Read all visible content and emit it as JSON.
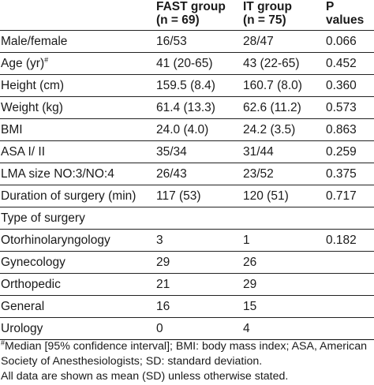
{
  "table": {
    "headers": [
      {
        "line1": "",
        "line2": ""
      },
      {
        "line1": "FAST group",
        "line2": "(n = 69)"
      },
      {
        "line1": "IT group",
        "line2": "(n = 75)"
      },
      {
        "line1": "P values",
        "line2": ""
      }
    ],
    "rows": [
      {
        "label": "Male/female",
        "sup": "",
        "fast": "16/53",
        "it": "28/47",
        "p": "0.066"
      },
      {
        "label": "Age (yr)",
        "sup": "#",
        "fast": "41 (20-65)",
        "it": "43 (22-65)",
        "p": "0.452"
      },
      {
        "label": "Height (cm)",
        "sup": "",
        "fast": "159.5 (8.4)",
        "it": "160.7 (8.0)",
        "p": "0.360"
      },
      {
        "label": "Weight (kg)",
        "sup": "",
        "fast": "61.4 (13.3)",
        "it": "62.6 (11.2)",
        "p": "0.573"
      },
      {
        "label": "BMI",
        "sup": "",
        "fast": "24.0 (4.0)",
        "it": "24.2 (3.5)",
        "p": "0.863"
      },
      {
        "label": "ASA I/ II",
        "sup": "",
        "fast": "35/34",
        "it": "31/44",
        "p": "0.259"
      },
      {
        "label": "LMA size NO:3/NO:4",
        "sup": "",
        "fast": "26/43",
        "it": "23/52",
        "p": "0.375"
      },
      {
        "label": "Duration of surgery (min)",
        "sup": "",
        "fast": "117 (53)",
        "it": "120 (51)",
        "p": "0.717"
      },
      {
        "label": "Type of surgery",
        "sup": "",
        "fast": "",
        "it": "",
        "p": ""
      },
      {
        "label": "Otorhinolaryngology",
        "sup": "",
        "fast": "3",
        "it": "1",
        "p": "0.182"
      },
      {
        "label": "Gynecology",
        "sup": "",
        "fast": "29",
        "it": "26",
        "p": ""
      },
      {
        "label": "Orthopedic",
        "sup": "",
        "fast": "21",
        "it": "29",
        "p": ""
      },
      {
        "label": "General",
        "sup": "",
        "fast": "16",
        "it": "15",
        "p": ""
      },
      {
        "label": "Urology",
        "sup": "",
        "fast": "0",
        "it": "4",
        "p": ""
      }
    ]
  },
  "footnotes": {
    "marker": "#",
    "line1": "Median [95% confidence interval]; BMI: body mass index; ASA, American",
    "line2": "Society of Anesthesiologists; SD: standard deviation.",
    "line3": "All data are shown as mean (SD) unless otherwise stated."
  }
}
